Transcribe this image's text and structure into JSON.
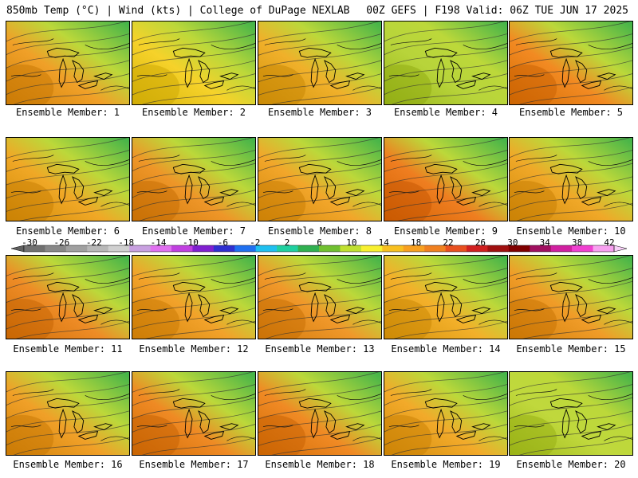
{
  "header": {
    "left": "850mb Temp (°C) | Wind (kts) | College of DuPage NEXLAB",
    "right": "00Z GEFS | F198 Valid: 06Z TUE JUN 17 2025"
  },
  "member_label_prefix": "Ensemble Member:",
  "members": [
    {
      "number": "1",
      "tint": "#f0a028"
    },
    {
      "number": "2",
      "tint": "#f6d22a"
    },
    {
      "number": "3",
      "tint": "#f0b02a"
    },
    {
      "number": "4",
      "tint": "#b8d43a"
    },
    {
      "number": "5",
      "tint": "#f28a22"
    },
    {
      "number": "6",
      "tint": "#f0a826"
    },
    {
      "number": "7",
      "tint": "#ee9628"
    },
    {
      "number": "8",
      "tint": "#f2a62a"
    },
    {
      "number": "9",
      "tint": "#ef7e20"
    },
    {
      "number": "10",
      "tint": "#f0a828"
    },
    {
      "number": "11",
      "tint": "#ee8c26"
    },
    {
      "number": "12",
      "tint": "#f2a22a"
    },
    {
      "number": "13",
      "tint": "#f0982a"
    },
    {
      "number": "14",
      "tint": "#f3b02a"
    },
    {
      "number": "15",
      "tint": "#f09c28"
    },
    {
      "number": "16",
      "tint": "#f0a028"
    },
    {
      "number": "17",
      "tint": "#ef8a24"
    },
    {
      "number": "18",
      "tint": "#f08a24"
    },
    {
      "number": "19",
      "tint": "#f2aa2a"
    },
    {
      "number": "20",
      "tint": "#c0d83c"
    }
  ],
  "colorbar": {
    "tick_labels": [
      "-30",
      "-26",
      "-22",
      "-18",
      "-14",
      "-10",
      "-6",
      "-2",
      "2",
      "6",
      "10",
      "14",
      "18",
      "22",
      "26",
      "30",
      "34",
      "38",
      "42"
    ],
    "colors": [
      "#707070",
      "#888888",
      "#a0a0a0",
      "#b8b8b8",
      "#d0d0d0",
      "#c8a0e0",
      "#e070f0",
      "#c040e0",
      "#8020d0",
      "#3030d0",
      "#2070f0",
      "#20c0f0",
      "#20d0a0",
      "#30b050",
      "#70c030",
      "#c0e030",
      "#f8f030",
      "#f8c020",
      "#f8a020",
      "#f08020",
      "#e85020",
      "#d02020",
      "#a01010",
      "#800000",
      "#a01060",
      "#d020a0",
      "#f040d0",
      "#f8a0f0"
    ]
  }
}
